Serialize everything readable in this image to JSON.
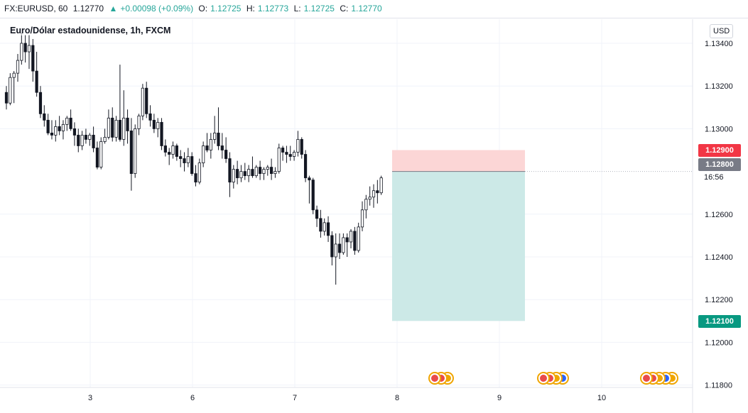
{
  "header": {
    "symbol": "FX:EURUSD, 60",
    "last": "1.12770",
    "change": "+0.00098 (+0.09%)",
    "o_label": "O:",
    "o_value": "1.12725",
    "h_label": "H:",
    "h_value": "1.12773",
    "l_label": "L:",
    "l_value": "1.12725",
    "c_label": "C:",
    "c_value": "1.12770"
  },
  "legend": {
    "title": "Euro/Dólar estadounidense, 1h, FXCM"
  },
  "currency": "USD",
  "tags": {
    "stop": "1.12900",
    "entry": "1.12800",
    "target": "1.12100",
    "countdown": "16:56"
  },
  "colors": {
    "up": "#26a69a",
    "down": "#131722",
    "stop_zone": "#fcd6d6",
    "target_zone": "#cce9e7"
  },
  "chart_data": {
    "type": "candlestick",
    "symbol": "EURUSD",
    "ylim": [
      1.1179,
      1.1346
    ],
    "y_ticks": [
      "1.13400",
      "1.13200",
      "1.13000",
      "1.12600",
      "1.12400",
      "1.12200",
      "1.12000",
      "1.11800"
    ],
    "x_ticks": [
      "3",
      "6",
      "7",
      "8",
      "9",
      "10"
    ],
    "candles": [
      [
        1.1317,
        1.132,
        1.1309,
        1.1312
      ],
      [
        1.1312,
        1.1326,
        1.1311,
        1.1324
      ],
      [
        1.1324,
        1.1327,
        1.1312,
        1.1326
      ],
      [
        1.1326,
        1.1335,
        1.1322,
        1.1332
      ],
      [
        1.1332,
        1.1345,
        1.133,
        1.134
      ],
      [
        1.134,
        1.1344,
        1.1331,
        1.1336
      ],
      [
        1.1336,
        1.1344,
        1.1328,
        1.1339
      ],
      [
        1.1339,
        1.1342,
        1.1322,
        1.1327
      ],
      [
        1.1327,
        1.1336,
        1.1315,
        1.1317
      ],
      [
        1.1317,
        1.132,
        1.1305,
        1.1307
      ],
      [
        1.1307,
        1.1311,
        1.1301,
        1.1304
      ],
      [
        1.1304,
        1.1307,
        1.1297,
        1.1298
      ],
      [
        1.1298,
        1.1304,
        1.1295,
        1.1297
      ],
      [
        1.1297,
        1.1304,
        1.1294,
        1.1301
      ],
      [
        1.1301,
        1.1306,
        1.1297,
        1.1299
      ],
      [
        1.1299,
        1.1304,
        1.1295,
        1.1302
      ],
      [
        1.1302,
        1.1306,
        1.1299,
        1.1305
      ],
      [
        1.1305,
        1.1309,
        1.1299,
        1.13
      ],
      [
        1.13,
        1.1303,
        1.1292,
        1.1297
      ],
      [
        1.1297,
        1.13,
        1.1289,
        1.1292
      ],
      [
        1.1292,
        1.1299,
        1.129,
        1.1297
      ],
      [
        1.1297,
        1.13,
        1.1293,
        1.1295
      ],
      [
        1.1295,
        1.1298,
        1.1292,
        1.1297
      ],
      [
        1.1297,
        1.1301,
        1.1289,
        1.1291
      ],
      [
        1.1291,
        1.1294,
        1.1281,
        1.1282
      ],
      [
        1.1282,
        1.1296,
        1.1281,
        1.1294
      ],
      [
        1.1294,
        1.13,
        1.1293,
        1.1296
      ],
      [
        1.1296,
        1.1309,
        1.1295,
        1.1305
      ],
      [
        1.1305,
        1.131,
        1.1294,
        1.1296
      ],
      [
        1.1296,
        1.1306,
        1.1294,
        1.1304
      ],
      [
        1.1304,
        1.133,
        1.1294,
        1.1295
      ],
      [
        1.1295,
        1.1318,
        1.1292,
        1.1305
      ],
      [
        1.1305,
        1.1309,
        1.1293,
        1.1299
      ],
      [
        1.1299,
        1.1305,
        1.1271,
        1.1279
      ],
      [
        1.1279,
        1.1302,
        1.1277,
        1.13
      ],
      [
        1.13,
        1.1307,
        1.1297,
        1.1306
      ],
      [
        1.1306,
        1.1321,
        1.1304,
        1.1319
      ],
      [
        1.1319,
        1.1322,
        1.1305,
        1.1307
      ],
      [
        1.1307,
        1.1311,
        1.1301,
        1.1304
      ],
      [
        1.1304,
        1.1307,
        1.1298,
        1.13
      ],
      [
        1.13,
        1.1305,
        1.1296,
        1.1303
      ],
      [
        1.1303,
        1.1305,
        1.129,
        1.1292
      ],
      [
        1.1292,
        1.1295,
        1.1287,
        1.1289
      ],
      [
        1.1289,
        1.1291,
        1.1283,
        1.1288
      ],
      [
        1.1288,
        1.1294,
        1.1286,
        1.1292
      ],
      [
        1.1292,
        1.1293,
        1.1285,
        1.1287
      ],
      [
        1.1287,
        1.129,
        1.1282,
        1.1286
      ],
      [
        1.1286,
        1.1289,
        1.128,
        1.1284
      ],
      [
        1.1284,
        1.1291,
        1.1282,
        1.1287
      ],
      [
        1.1287,
        1.1289,
        1.1278,
        1.1279
      ],
      [
        1.1279,
        1.1283,
        1.1273,
        1.1275
      ],
      [
        1.1275,
        1.1286,
        1.1274,
        1.1284
      ],
      [
        1.1284,
        1.1294,
        1.1282,
        1.1292
      ],
      [
        1.1292,
        1.1298,
        1.1289,
        1.129
      ],
      [
        1.129,
        1.1298,
        1.1286,
        1.1295
      ],
      [
        1.1295,
        1.1306,
        1.1293,
        1.1298
      ],
      [
        1.1298,
        1.131,
        1.129,
        1.1292
      ],
      [
        1.1292,
        1.1298,
        1.1286,
        1.129
      ],
      [
        1.129,
        1.1296,
        1.1284,
        1.1286
      ],
      [
        1.1286,
        1.1289,
        1.1268,
        1.1275
      ],
      [
        1.1275,
        1.1283,
        1.1272,
        1.1281
      ],
      [
        1.1281,
        1.1285,
        1.1274,
        1.1277
      ],
      [
        1.1277,
        1.1283,
        1.1275,
        1.128
      ],
      [
        1.128,
        1.1284,
        1.1276,
        1.1278
      ],
      [
        1.1278,
        1.1283,
        1.1275,
        1.1281
      ],
      [
        1.1281,
        1.1287,
        1.1277,
        1.1278
      ],
      [
        1.1278,
        1.1283,
        1.1277,
        1.1282
      ],
      [
        1.1282,
        1.1285,
        1.1276,
        1.1279
      ],
      [
        1.1279,
        1.1282,
        1.1276,
        1.1281
      ],
      [
        1.1281,
        1.1283,
        1.1278,
        1.1282
      ],
      [
        1.1282,
        1.1286,
        1.1276,
        1.1279
      ],
      [
        1.1279,
        1.1282,
        1.1277,
        1.128
      ],
      [
        1.128,
        1.1293,
        1.1279,
        1.1291
      ],
      [
        1.1291,
        1.1292,
        1.1285,
        1.1289
      ],
      [
        1.1289,
        1.1292,
        1.1284,
        1.1288
      ],
      [
        1.1288,
        1.1292,
        1.1285,
        1.1287
      ],
      [
        1.1287,
        1.129,
        1.1285,
        1.1289
      ],
      [
        1.1289,
        1.1299,
        1.1287,
        1.1295
      ],
      [
        1.1295,
        1.1296,
        1.1286,
        1.1288
      ],
      [
        1.1288,
        1.129,
        1.1275,
        1.1277
      ],
      [
        1.1277,
        1.1278,
        1.1265,
        1.1276
      ],
      [
        1.1276,
        1.1277,
        1.126,
        1.1262
      ],
      [
        1.1262,
        1.1264,
        1.1254,
        1.1258
      ],
      [
        1.1258,
        1.1262,
        1.1249,
        1.1252
      ],
      [
        1.1252,
        1.1258,
        1.125,
        1.1256
      ],
      [
        1.1256,
        1.1259,
        1.1247,
        1.125
      ],
      [
        1.125,
        1.1252,
        1.1236,
        1.124
      ],
      [
        1.124,
        1.1251,
        1.1227,
        1.1246
      ],
      [
        1.1246,
        1.1251,
        1.1239,
        1.1242
      ],
      [
        1.1242,
        1.1251,
        1.1241,
        1.1249
      ],
      [
        1.1249,
        1.1251,
        1.124,
        1.1247
      ],
      [
        1.1247,
        1.1253,
        1.1244,
        1.1252
      ],
      [
        1.1252,
        1.1254,
        1.1241,
        1.1243
      ],
      [
        1.1243,
        1.1256,
        1.1242,
        1.1254
      ],
      [
        1.1254,
        1.1266,
        1.1252,
        1.1262
      ],
      [
        1.1262,
        1.1269,
        1.1258,
        1.1267
      ],
      [
        1.1267,
        1.1273,
        1.1264,
        1.1268
      ],
      [
        1.1268,
        1.1274,
        1.1263,
        1.1271
      ],
      [
        1.1271,
        1.1276,
        1.1265,
        1.127
      ],
      [
        1.127,
        1.1278,
        1.1269,
        1.1277
      ]
    ],
    "position": {
      "side": "short",
      "entry": 1.128,
      "stop": 1.129,
      "target": 1.121
    }
  }
}
